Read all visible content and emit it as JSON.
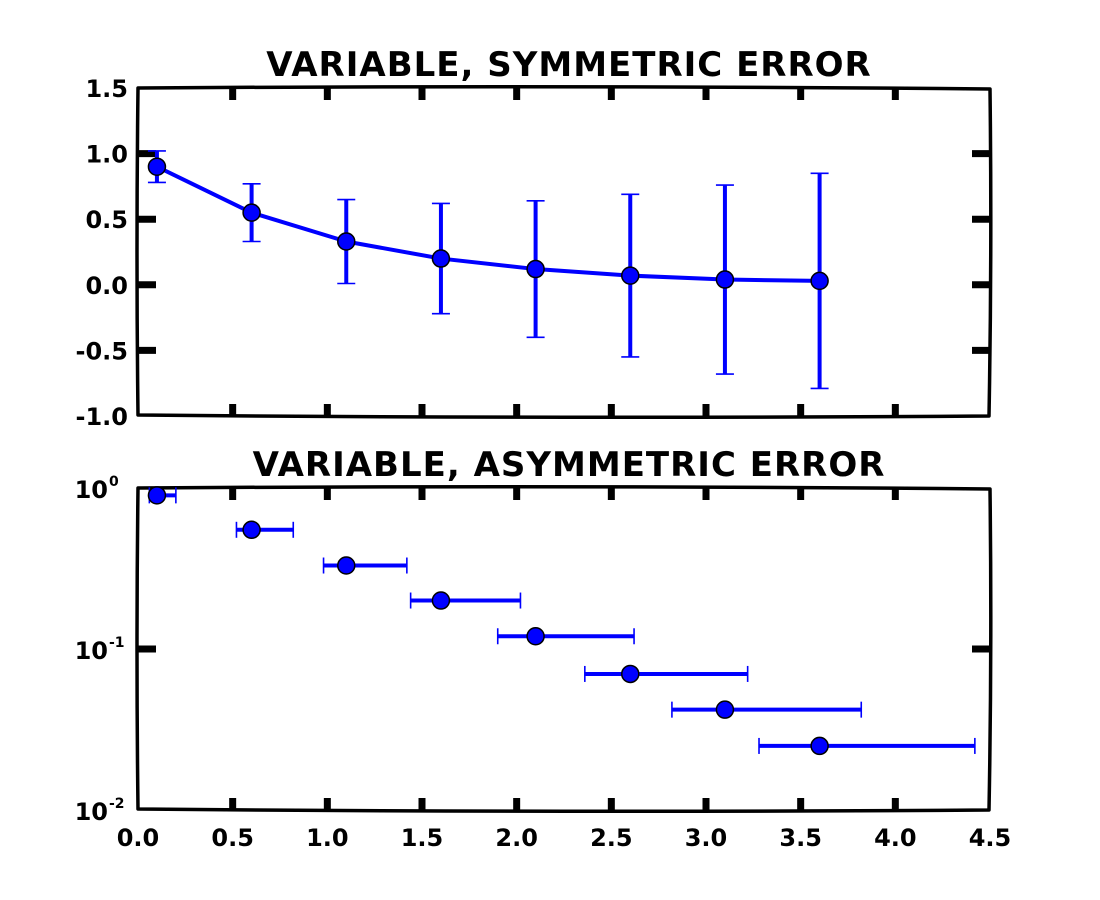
{
  "chart_data": [
    {
      "type": "line",
      "title": "VARIABLE, SYMMETRIC ERROR",
      "xlim": [
        0.0,
        4.5
      ],
      "ylim": [
        -1.0,
        1.5
      ],
      "yscale": "linear",
      "xticks": [
        0.0,
        0.5,
        1.0,
        1.5,
        2.0,
        2.5,
        3.0,
        3.5,
        4.0,
        4.5
      ],
      "yticks": [
        -1.0,
        -0.5,
        0.0,
        0.5,
        1.0,
        1.5
      ],
      "ytick_labels": [
        "-1.0",
        "-0.5",
        "0.0",
        "0.5",
        "1.0",
        "1.5"
      ],
      "xtick_labels_shown": false,
      "series": [
        {
          "x": [
            0.1,
            0.6,
            1.1,
            1.6,
            2.1,
            2.6,
            3.1,
            3.6
          ],
          "y": [
            0.9,
            0.55,
            0.33,
            0.2,
            0.12,
            0.07,
            0.04,
            0.03
          ],
          "yerr": [
            0.12,
            0.22,
            0.32,
            0.42,
            0.52,
            0.62,
            0.72,
            0.82
          ],
          "color": "#0000ff",
          "marker": "circle"
        }
      ]
    },
    {
      "type": "scatter",
      "title": "VARIABLE, ASYMMETRIC ERROR",
      "xlim": [
        0.0,
        4.5
      ],
      "ylim": [
        0.01,
        1.0
      ],
      "yscale": "log",
      "xticks": [
        0.0,
        0.5,
        1.0,
        1.5,
        2.0,
        2.5,
        3.0,
        3.5,
        4.0,
        4.5
      ],
      "xtick_labels": [
        "0.0",
        "0.5",
        "1.0",
        "1.5",
        "2.0",
        "2.5",
        "3.0",
        "3.5",
        "4.0",
        "4.5"
      ],
      "yticks": [
        0.01,
        0.1,
        1.0
      ],
      "ytick_labels": [
        {
          "base": "10",
          "exp": "-2"
        },
        {
          "base": "10",
          "exp": "-1"
        },
        {
          "base": "10",
          "exp": "0"
        }
      ],
      "series": [
        {
          "x": [
            0.1,
            0.6,
            1.1,
            1.6,
            2.1,
            2.6,
            3.1,
            3.6
          ],
          "y": [
            0.9,
            0.55,
            0.33,
            0.2,
            0.12,
            0.07,
            0.042,
            0.025
          ],
          "xerr_lower": [
            0.04,
            0.08,
            0.12,
            0.16,
            0.2,
            0.24,
            0.28,
            0.32
          ],
          "xerr_upper": [
            0.1,
            0.22,
            0.32,
            0.42,
            0.52,
            0.62,
            0.72,
            0.82
          ],
          "color": "#0000ff",
          "marker": "circle"
        }
      ]
    }
  ]
}
